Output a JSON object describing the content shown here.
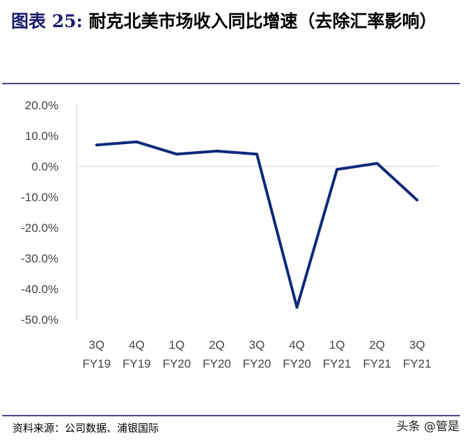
{
  "header": {
    "label": "图表 25:",
    "title": "耐克北美市场收入同比增速（去除汇率影响）"
  },
  "footer": {
    "source": "资料来源：公司数据、浦银国际",
    "watermark": "头条 @管是"
  },
  "colors": {
    "line": "#0d2a7a",
    "title_label": "#1a1a6e",
    "rule": "#4a4585"
  },
  "chart_data": {
    "type": "line",
    "categories": [
      "3Q FY19",
      "4Q FY19",
      "1Q FY20",
      "2Q FY20",
      "3Q FY20",
      "4Q FY20",
      "1Q FY21",
      "2Q FY21",
      "3Q FY21"
    ],
    "category_lines": [
      [
        "3Q",
        "FY19"
      ],
      [
        "4Q",
        "FY19"
      ],
      [
        "1Q",
        "FY20"
      ],
      [
        "2Q",
        "FY20"
      ],
      [
        "3Q",
        "FY20"
      ],
      [
        "4Q",
        "FY20"
      ],
      [
        "1Q",
        "FY21"
      ],
      [
        "2Q",
        "FY21"
      ],
      [
        "3Q",
        "FY21"
      ]
    ],
    "values": [
      7,
      8,
      4,
      5,
      4,
      -46,
      -1,
      1,
      -11
    ],
    "ylim": [
      -50,
      20
    ],
    "yticks": [
      "20.0%",
      "10.0%",
      "0.0%",
      "-10.0%",
      "-20.0%",
      "-30.0%",
      "-40.0%",
      "-50.0%"
    ],
    "ytick_values": [
      20,
      10,
      0,
      -10,
      -20,
      -30,
      -40,
      -50
    ],
    "grid": false,
    "legend": "none"
  }
}
